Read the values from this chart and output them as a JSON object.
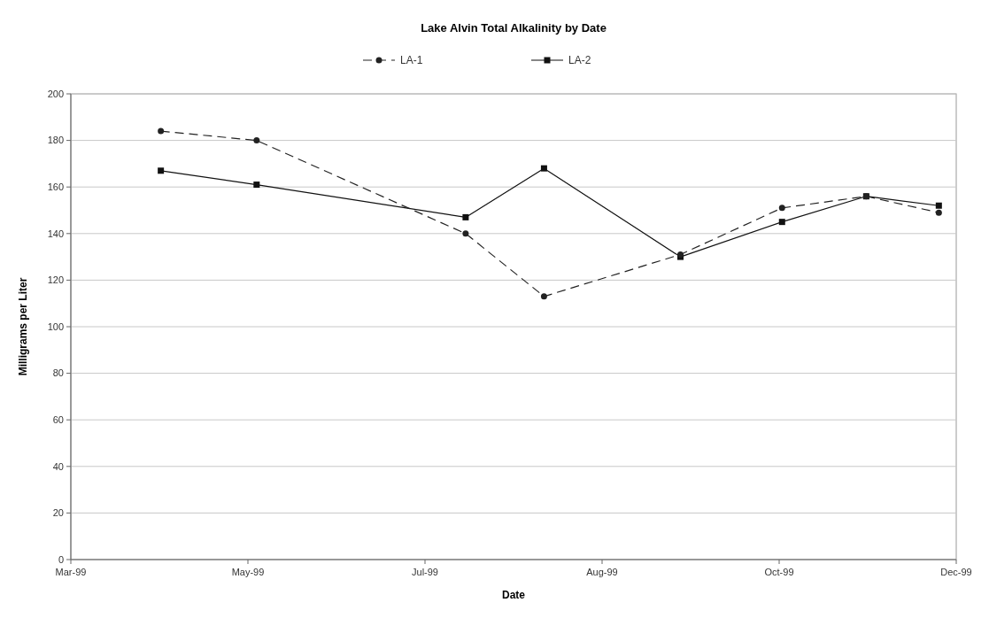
{
  "chart_data": {
    "type": "line",
    "title": "Lake Alvin Total Alkalinity by Date",
    "xlabel": "Date",
    "ylabel": "Milligrams per Liter",
    "xlim": [
      "1999-03-01",
      "1999-12-31"
    ],
    "xticks": [
      {
        "value": "1999-03-01",
        "label": "Mar-99"
      },
      {
        "value": "1999-05-01",
        "label": "May-99"
      },
      {
        "value": "1999-07-01",
        "label": "Jul-99"
      },
      {
        "value": "1999-08-31",
        "label": "Aug-99"
      },
      {
        "value": "1999-10-31",
        "label": "Oct-99"
      },
      {
        "value": "1999-12-31",
        "label": "Dec-99"
      }
    ],
    "ylim": [
      0,
      200
    ],
    "yticks": [
      0,
      20,
      40,
      60,
      80,
      100,
      120,
      140,
      160,
      180,
      200
    ],
    "grid": "y",
    "legend": "top",
    "series": [
      {
        "name": "LA-1",
        "color": "#222222",
        "marker": "circle",
        "line_style": "dashed",
        "x": [
          "1999-04-01",
          "1999-05-04",
          "1999-07-15",
          "1999-08-11",
          "1999-09-27",
          "1999-11-01",
          "1999-11-30",
          "1999-12-25"
        ],
        "values": [
          184,
          180,
          140,
          113,
          131,
          151,
          156,
          149
        ]
      },
      {
        "name": "LA-2",
        "color": "#111111",
        "marker": "square",
        "line_style": "solid",
        "x": [
          "1999-04-01",
          "1999-05-04",
          "1999-07-15",
          "1999-08-11",
          "1999-09-27",
          "1999-11-01",
          "1999-11-30",
          "1999-12-25"
        ],
        "values": [
          167,
          161,
          147,
          168,
          130,
          145,
          156,
          152
        ]
      }
    ]
  }
}
